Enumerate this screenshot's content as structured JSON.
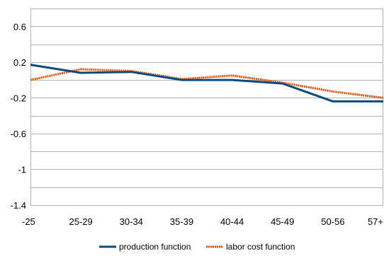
{
  "chart_data": {
    "type": "line",
    "title": "",
    "xlabel": "",
    "ylabel": "",
    "categories": [
      "-25",
      "25-29",
      "30-34",
      "35-39",
      "40-44",
      "45-49",
      "50-56",
      "57+"
    ],
    "ylim": [
      -1.4,
      0.8
    ],
    "y_gridlines": [
      -1.4,
      -1.2,
      -1.0,
      -0.8,
      -0.6,
      -0.4,
      -0.2,
      0,
      0.2,
      0.4,
      0.6,
      0.8
    ],
    "y_tick_labels": [
      {
        "value": -1.4,
        "label": "-1.4"
      },
      {
        "value": -1.0,
        "label": "-1"
      },
      {
        "value": -0.6,
        "label": "-0.6"
      },
      {
        "value": -0.2,
        "label": "-0.2"
      },
      {
        "value": 0.2,
        "label": "0.2"
      },
      {
        "value": 0.6,
        "label": "0.6"
      }
    ],
    "grid": true,
    "legend_position": "bottom",
    "series": [
      {
        "name": "production function",
        "color": "#0b4a7d",
        "style": "solid",
        "values": [
          0.17,
          0.08,
          0.09,
          0.0,
          0.0,
          -0.04,
          -0.24,
          -0.24
        ]
      },
      {
        "name": "labor cost function",
        "color": "#ff4a00",
        "style": "dotted",
        "values": [
          0.0,
          0.12,
          0.1,
          0.01,
          0.05,
          -0.03,
          -0.13,
          -0.2
        ]
      }
    ]
  }
}
